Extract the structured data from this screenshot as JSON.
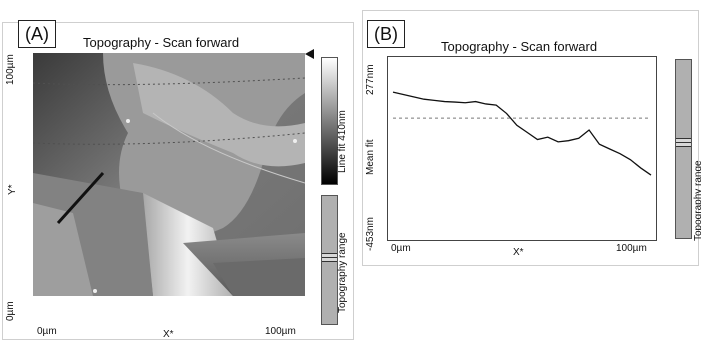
{
  "panelA": {
    "label": "(A)",
    "title": "Topography - Scan forward",
    "y_axis": {
      "top": "100µm",
      "bottom": "0µm",
      "label": "Y*"
    },
    "x_axis": {
      "left": "0µm",
      "mid": "X*",
      "right": "100µm"
    },
    "colorbar_label": "Line fit 410nm",
    "range_label": "Topography range"
  },
  "panelB": {
    "label": "(B)",
    "title": "Topography - Scan forward",
    "y_axis": {
      "top": "277nm",
      "mid": "Mean fit",
      "bottom": "-453nm"
    },
    "x_axis": {
      "left": "0µm",
      "mid": "X*",
      "right": "100µm"
    },
    "range_label": "Topography range"
  },
  "chart_data": {
    "type": "line",
    "title": "Topography - Scan forward",
    "xlabel": "X*",
    "ylabel": "Mean fit",
    "xlim": [
      0,
      100
    ],
    "ylim": [
      -453,
      277
    ],
    "x": [
      0,
      4,
      8,
      12,
      16,
      20,
      24,
      28,
      32,
      36,
      40,
      44,
      48,
      52,
      56,
      60,
      64,
      68,
      72,
      76,
      80,
      84,
      88,
      92,
      96,
      100
    ],
    "series": [
      {
        "values": [
          150,
          140,
          130,
          120,
          115,
          110,
          108,
          105,
          110,
          100,
          95,
          60,
          10,
          -20,
          -50,
          -40,
          -60,
          -55,
          -45,
          -10,
          -70,
          -90,
          -110,
          -135,
          -170,
          -200
        ]
      },
      {
        "values": [
          40,
          40,
          40,
          40,
          40,
          40,
          40,
          40,
          40,
          40,
          40,
          40,
          40,
          40,
          40,
          40,
          40,
          40,
          40,
          40,
          40,
          40,
          40,
          40,
          40,
          40
        ]
      }
    ],
    "grid": false
  }
}
